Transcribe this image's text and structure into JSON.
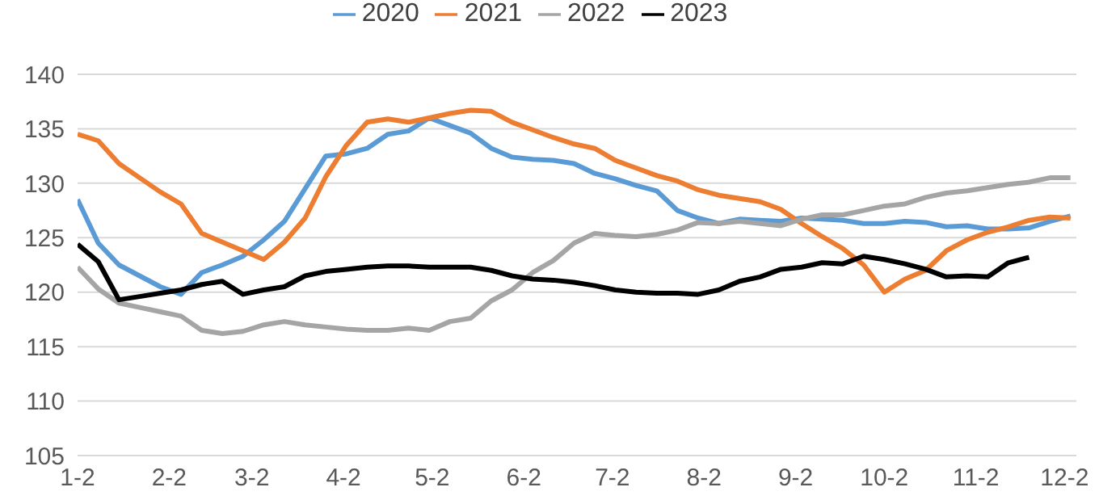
{
  "chart_data": {
    "type": "line",
    "x": [
      "--01-02",
      "--01-09",
      "--01-16",
      "--01-23",
      "--01-30",
      "--02-06",
      "--02-13",
      "--02-20",
      "--02-27",
      "--03-06",
      "--03-13",
      "--03-20",
      "--03-27",
      "--04-03",
      "--04-10",
      "--04-17",
      "--04-24",
      "--05-01",
      "--05-08",
      "--05-15",
      "--05-22",
      "--05-29",
      "--06-05",
      "--06-12",
      "--06-19",
      "--06-26",
      "--07-03",
      "--07-10",
      "--07-17",
      "--07-24",
      "--07-31",
      "--08-07",
      "--08-14",
      "--08-21",
      "--08-28",
      "--09-04",
      "--09-11",
      "--09-18",
      "--09-25",
      "--10-02",
      "--10-09",
      "--10-16",
      "--10-23",
      "--10-30",
      "--11-06",
      "--11-13",
      "--11-20",
      "--11-27",
      "--12-04"
    ],
    "series": [
      {
        "name": "2020",
        "color": "#5b9bd5",
        "values": [
          128.5,
          124.5,
          122.5,
          121.5,
          120.5,
          119.8,
          121.8,
          122.5,
          123.3,
          124.8,
          126.5,
          129.5,
          132.5,
          132.7,
          133.2,
          134.5,
          134.8,
          136.0,
          135.3,
          134.6,
          133.2,
          132.4,
          132.2,
          132.1,
          131.8,
          130.9,
          130.4,
          129.8,
          129.3,
          127.5,
          126.8,
          126.3,
          126.7,
          126.6,
          126.5,
          126.8,
          126.7,
          126.6,
          126.3,
          126.3,
          126.5,
          126.4,
          126.0,
          126.1,
          125.8,
          125.8,
          125.9,
          126.5,
          127.0
        ]
      },
      {
        "name": "2021",
        "color": "#ed7d31",
        "values": [
          134.5,
          133.9,
          131.8,
          130.5,
          129.2,
          128.1,
          125.4,
          124.6,
          123.8,
          123.0,
          124.6,
          126.8,
          130.6,
          133.5,
          135.6,
          135.9,
          135.6,
          136.0,
          136.4,
          136.7,
          136.6,
          135.6,
          134.9,
          134.2,
          133.6,
          133.2,
          132.1,
          131.4,
          130.7,
          130.2,
          129.4,
          128.9,
          128.6,
          128.3,
          127.6,
          126.3,
          125.1,
          124.0,
          122.5,
          120.0,
          121.2,
          122.0,
          123.8,
          124.8,
          125.5,
          126.0,
          126.6,
          126.9,
          126.8
        ]
      },
      {
        "name": "2022",
        "color": "#a5a5a5",
        "values": [
          122.3,
          120.3,
          119.0,
          118.6,
          118.2,
          117.8,
          116.5,
          116.2,
          116.4,
          117.0,
          117.3,
          117.0,
          116.8,
          116.6,
          116.5,
          116.5,
          116.7,
          116.5,
          117.3,
          117.6,
          119.2,
          120.2,
          121.8,
          122.9,
          124.5,
          125.4,
          125.2,
          125.1,
          125.3,
          125.7,
          126.4,
          126.3,
          126.5,
          126.3,
          126.1,
          126.7,
          127.1,
          127.1,
          127.5,
          127.9,
          128.1,
          128.7,
          129.1,
          129.3,
          129.6,
          129.9,
          130.1,
          130.5,
          130.5
        ]
      },
      {
        "name": "2023",
        "color": "#000000",
        "values": [
          124.4,
          122.8,
          119.3,
          119.6,
          119.9,
          120.2,
          120.7,
          121.0,
          119.8,
          120.2,
          120.5,
          121.5,
          121.9,
          122.1,
          122.3,
          122.4,
          122.4,
          122.3,
          122.3,
          122.3,
          122.0,
          121.5,
          121.2,
          121.1,
          120.9,
          120.6,
          120.2,
          120.0,
          119.9,
          119.9,
          119.8,
          120.2,
          121.0,
          121.4,
          122.1,
          122.3,
          122.7,
          122.6,
          123.3,
          123.0,
          122.6,
          122.1,
          121.4,
          121.5,
          121.4,
          122.7,
          123.2,
          null,
          null
        ]
      }
    ],
    "xlim": [
      "--01-02",
      "--12-06"
    ],
    "xticks": [
      {
        "value": "--01-02",
        "label": "1-2"
      },
      {
        "value": "--02-02",
        "label": "2-2"
      },
      {
        "value": "--03-02",
        "label": "3-2"
      },
      {
        "value": "--04-02",
        "label": "4-2"
      },
      {
        "value": "--05-02",
        "label": "5-2"
      },
      {
        "value": "--06-02",
        "label": "6-2"
      },
      {
        "value": "--07-02",
        "label": "7-2"
      },
      {
        "value": "--08-02",
        "label": "8-2"
      },
      {
        "value": "--09-02",
        "label": "9-2"
      },
      {
        "value": "--10-02",
        "label": "10-2"
      },
      {
        "value": "--11-02",
        "label": "11-2"
      },
      {
        "value": "--12-02",
        "label": "12-2"
      }
    ],
    "ylim": [
      105,
      140
    ],
    "yticks": [
      105,
      110,
      115,
      120,
      125,
      130,
      135,
      140
    ],
    "grid": "y",
    "legend": "top"
  }
}
